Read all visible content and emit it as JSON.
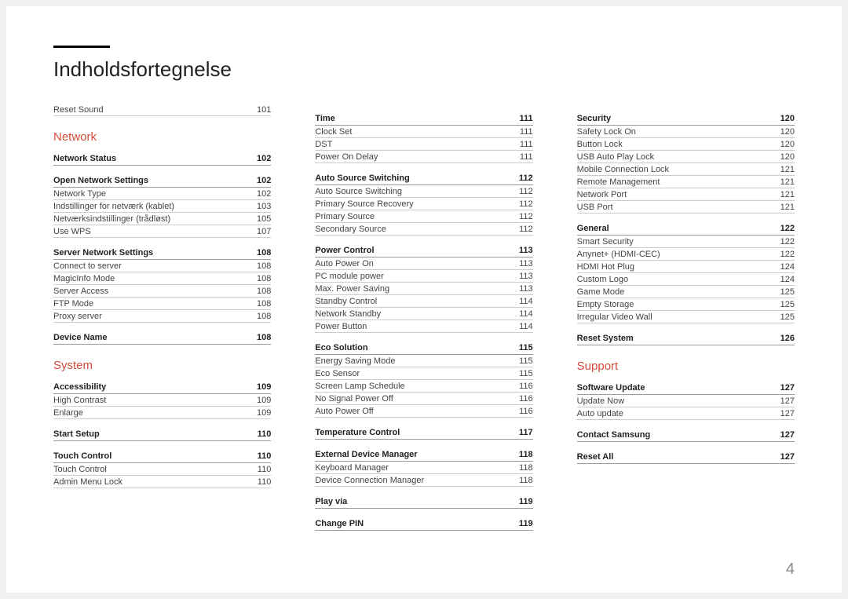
{
  "page": {
    "title": "Indholdsfortegnelse",
    "page_number": "4",
    "accent_color": "#d14c37",
    "text_color": "#222",
    "subtext_color": "#444",
    "rule_color": "#999",
    "subrule_color": "#ccc",
    "background": "#ffffff"
  },
  "columns": [
    {
      "blocks": [
        {
          "type": "item",
          "label": "Reset Sound",
          "page": "101"
        },
        {
          "type": "section",
          "label": "Network"
        },
        {
          "type": "group",
          "label": "Network Status",
          "page": "102"
        },
        {
          "type": "group",
          "label": "Open Network Settings",
          "page": "102"
        },
        {
          "type": "item",
          "label": "Network Type",
          "page": "102"
        },
        {
          "type": "item",
          "label": "Indstillinger for netværk (kablet)",
          "page": "103"
        },
        {
          "type": "item",
          "label": "Netværksindstillinger (trådløst)",
          "page": "105"
        },
        {
          "type": "item",
          "label": "Use WPS",
          "page": "107"
        },
        {
          "type": "group",
          "label": "Server Network Settings",
          "page": "108"
        },
        {
          "type": "item",
          "label": "Connect to server",
          "page": "108"
        },
        {
          "type": "item",
          "label": "MagicInfo Mode",
          "page": "108"
        },
        {
          "type": "item",
          "label": "Server Access",
          "page": "108"
        },
        {
          "type": "item",
          "label": "FTP Mode",
          "page": "108"
        },
        {
          "type": "item",
          "label": "Proxy server",
          "page": "108"
        },
        {
          "type": "group",
          "label": "Device Name",
          "page": "108"
        },
        {
          "type": "section",
          "label": "System"
        },
        {
          "type": "group",
          "label": "Accessibility",
          "page": "109"
        },
        {
          "type": "item",
          "label": "High Contrast",
          "page": "109"
        },
        {
          "type": "item",
          "label": "Enlarge",
          "page": "109"
        },
        {
          "type": "group",
          "label": "Start Setup",
          "page": "110"
        },
        {
          "type": "group",
          "label": "Touch Control",
          "page": "110"
        },
        {
          "type": "item",
          "label": "Touch Control",
          "page": "110"
        },
        {
          "type": "item",
          "label": "Admin Menu Lock",
          "page": "110"
        }
      ]
    },
    {
      "blocks": [
        {
          "type": "group",
          "label": "Time",
          "page": "111"
        },
        {
          "type": "item",
          "label": "Clock Set",
          "page": "111"
        },
        {
          "type": "item",
          "label": "DST",
          "page": "111"
        },
        {
          "type": "item",
          "label": "Power On Delay",
          "page": "111"
        },
        {
          "type": "group",
          "label": "Auto Source Switching",
          "page": "112"
        },
        {
          "type": "item",
          "label": "Auto Source Switching",
          "page": "112"
        },
        {
          "type": "item",
          "label": "Primary Source Recovery",
          "page": "112"
        },
        {
          "type": "item",
          "label": "Primary Source",
          "page": "112"
        },
        {
          "type": "item",
          "label": "Secondary Source",
          "page": "112"
        },
        {
          "type": "group",
          "label": "Power Control",
          "page": "113"
        },
        {
          "type": "item",
          "label": "Auto Power On",
          "page": "113"
        },
        {
          "type": "item",
          "label": "PC module power",
          "page": "113"
        },
        {
          "type": "item",
          "label": "Max. Power Saving",
          "page": "113"
        },
        {
          "type": "item",
          "label": "Standby Control",
          "page": "114"
        },
        {
          "type": "item",
          "label": "Network Standby",
          "page": "114"
        },
        {
          "type": "item",
          "label": "Power Button",
          "page": "114"
        },
        {
          "type": "group",
          "label": "Eco Solution",
          "page": "115"
        },
        {
          "type": "item",
          "label": "Energy Saving Mode",
          "page": "115"
        },
        {
          "type": "item",
          "label": "Eco Sensor",
          "page": "115"
        },
        {
          "type": "item",
          "label": "Screen Lamp Schedule",
          "page": "116"
        },
        {
          "type": "item",
          "label": "No Signal Power Off",
          "page": "116"
        },
        {
          "type": "item",
          "label": "Auto Power Off",
          "page": "116"
        },
        {
          "type": "group",
          "label": "Temperature Control",
          "page": "117"
        },
        {
          "type": "group",
          "label": "External Device Manager",
          "page": "118"
        },
        {
          "type": "item",
          "label": "Keyboard Manager",
          "page": "118"
        },
        {
          "type": "item",
          "label": "Device Connection Manager",
          "page": "118"
        },
        {
          "type": "group",
          "label": "Play via",
          "page": "119"
        },
        {
          "type": "group",
          "label": "Change PIN",
          "page": "119"
        }
      ]
    },
    {
      "blocks": [
        {
          "type": "group",
          "label": "Security",
          "page": "120"
        },
        {
          "type": "item",
          "label": "Safety Lock On",
          "page": "120"
        },
        {
          "type": "item",
          "label": "Button Lock",
          "page": "120"
        },
        {
          "type": "item",
          "label": "USB Auto Play Lock",
          "page": "120"
        },
        {
          "type": "item",
          "label": "Mobile Connection Lock",
          "page": "121"
        },
        {
          "type": "item",
          "label": "Remote Management",
          "page": "121"
        },
        {
          "type": "item",
          "label": "Network Port",
          "page": "121"
        },
        {
          "type": "item",
          "label": "USB Port",
          "page": "121"
        },
        {
          "type": "group",
          "label": "General",
          "page": "122"
        },
        {
          "type": "item",
          "label": "Smart Security",
          "page": "122"
        },
        {
          "type": "item",
          "label": "Anynet+ (HDMI-CEC)",
          "page": "122"
        },
        {
          "type": "item",
          "label": "HDMI Hot Plug",
          "page": "124"
        },
        {
          "type": "item",
          "label": "Custom Logo",
          "page": "124"
        },
        {
          "type": "item",
          "label": "Game Mode",
          "page": "125"
        },
        {
          "type": "item",
          "label": "Empty Storage",
          "page": "125"
        },
        {
          "type": "item",
          "label": "Irregular Video Wall",
          "page": "125"
        },
        {
          "type": "group",
          "label": "Reset System",
          "page": "126"
        },
        {
          "type": "section",
          "label": "Support"
        },
        {
          "type": "group",
          "label": "Software Update",
          "page": "127"
        },
        {
          "type": "item",
          "label": "Update Now",
          "page": "127"
        },
        {
          "type": "item",
          "label": "Auto update",
          "page": "127"
        },
        {
          "type": "group",
          "label": "Contact Samsung",
          "page": "127"
        },
        {
          "type": "group",
          "label": "Reset All",
          "page": "127"
        }
      ]
    }
  ]
}
